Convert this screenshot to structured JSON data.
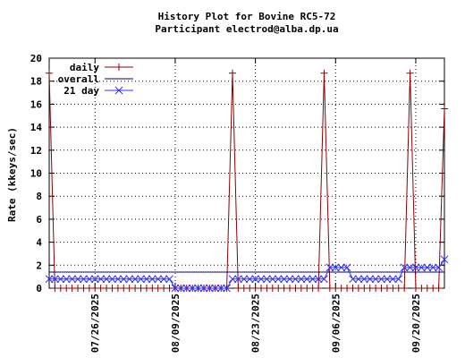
{
  "chart_data": {
    "type": "line",
    "title": "History Plot for Bovine RC5-72",
    "subtitle": "Participant electrod@alba.dp.ua",
    "y_label": "Rate (kkeys/sec)",
    "x": [
      "2025-07-18",
      "2025-07-19",
      "2025-07-20",
      "2025-07-21",
      "2025-07-22",
      "2025-07-23",
      "2025-07-24",
      "2025-07-25",
      "2025-07-26",
      "2025-07-27",
      "2025-07-28",
      "2025-07-29",
      "2025-07-30",
      "2025-07-31",
      "2025-08-01",
      "2025-08-02",
      "2025-08-03",
      "2025-08-04",
      "2025-08-05",
      "2025-08-06",
      "2025-08-07",
      "2025-08-08",
      "2025-08-09",
      "2025-08-10",
      "2025-08-11",
      "2025-08-12",
      "2025-08-13",
      "2025-08-14",
      "2025-08-15",
      "2025-08-16",
      "2025-08-17",
      "2025-08-18",
      "2025-08-19",
      "2025-08-20",
      "2025-08-21",
      "2025-08-22",
      "2025-08-23",
      "2025-08-24",
      "2025-08-25",
      "2025-08-26",
      "2025-08-27",
      "2025-08-28",
      "2025-08-29",
      "2025-08-30",
      "2025-08-31",
      "2025-09-01",
      "2025-09-02",
      "2025-09-03",
      "2025-09-04",
      "2025-09-05",
      "2025-09-06",
      "2025-09-07",
      "2025-09-08",
      "2025-09-09",
      "2025-09-10",
      "2025-09-11",
      "2025-09-12",
      "2025-09-13",
      "2025-09-14",
      "2025-09-15",
      "2025-09-16",
      "2025-09-17",
      "2025-09-18",
      "2025-09-19",
      "2025-09-20",
      "2025-09-21",
      "2025-09-22",
      "2025-09-23",
      "2025-09-24",
      "2025-09-25"
    ],
    "series": [
      {
        "name": "daily",
        "color": "#8b0000",
        "marker": "plus",
        "values": [
          18.7,
          0,
          0,
          0,
          0,
          0,
          0,
          0,
          0,
          0,
          0,
          0,
          0,
          0,
          0,
          0,
          0,
          0,
          0,
          0,
          0,
          0,
          0,
          0,
          0,
          0,
          0,
          0,
          0,
          0,
          0,
          0,
          18.7,
          0,
          0,
          0,
          0,
          0,
          0,
          0,
          0,
          0,
          0,
          0,
          0,
          0,
          0,
          0,
          18.7,
          0,
          0,
          0,
          0,
          0,
          0,
          0,
          0,
          0,
          0,
          0,
          0,
          0,
          0,
          18.7,
          0,
          0,
          0,
          0,
          0,
          15.6
        ]
      },
      {
        "name": "overall",
        "color": "#000080",
        "marker": "none",
        "values": [
          1.4,
          1.4,
          1.4,
          1.4,
          1.4,
          1.4,
          1.4,
          1.4,
          1.4,
          1.4,
          1.4,
          1.4,
          1.4,
          1.4,
          1.4,
          1.4,
          1.4,
          1.4,
          1.4,
          1.4,
          1.4,
          1.4,
          1.4,
          1.4,
          1.4,
          1.4,
          1.4,
          1.4,
          1.4,
          1.4,
          1.4,
          1.4,
          1.4,
          1.4,
          1.4,
          1.4,
          1.4,
          1.4,
          1.4,
          1.4,
          1.4,
          1.4,
          1.4,
          1.4,
          1.4,
          1.4,
          1.4,
          1.4,
          1.4,
          1.4,
          1.4,
          1.4,
          1.4,
          1.4,
          1.4,
          1.4,
          1.4,
          1.4,
          1.4,
          1.4,
          1.4,
          1.4,
          1.4,
          1.4,
          1.4,
          1.4,
          1.4,
          1.4,
          1.4,
          1.4
        ]
      },
      {
        "name": "21 day",
        "color": "#3030ff",
        "marker": "cross",
        "values": [
          0.8,
          0.8,
          0.8,
          0.8,
          0.8,
          0.8,
          0.8,
          0.8,
          0.8,
          0.8,
          0.8,
          0.8,
          0.8,
          0.8,
          0.8,
          0.8,
          0.8,
          0.8,
          0.8,
          0.8,
          0.8,
          0.8,
          0,
          0,
          0,
          0,
          0,
          0,
          0,
          0,
          0,
          0,
          0.8,
          0.8,
          0.8,
          0.8,
          0.8,
          0.8,
          0.8,
          0.8,
          0.8,
          0.8,
          0.8,
          0.8,
          0.8,
          0.8,
          0.8,
          0.8,
          0.8,
          1.8,
          1.8,
          1.8,
          1.8,
          0.8,
          0.8,
          0.8,
          0.8,
          0.8,
          0.8,
          0.8,
          0.8,
          0.8,
          1.8,
          1.8,
          1.8,
          1.8,
          1.8,
          1.8,
          1.8,
          2.5
        ]
      }
    ],
    "xlim": [
      "2025-07-18",
      "2025-09-25"
    ],
    "xticks": [
      {
        "value": "2025-07-26",
        "label": "07/26/2025"
      },
      {
        "value": "2025-08-09",
        "label": "08/09/2025"
      },
      {
        "value": "2025-08-23",
        "label": "08/23/2025"
      },
      {
        "value": "2025-09-06",
        "label": "09/06/2025"
      },
      {
        "value": "2025-09-20",
        "label": "09/20/2025"
      }
    ],
    "ylim": [
      0,
      20
    ],
    "yticks": [
      0,
      2,
      4,
      6,
      8,
      10,
      12,
      14,
      16,
      18,
      20
    ],
    "grid": true,
    "legend": "top-left"
  }
}
